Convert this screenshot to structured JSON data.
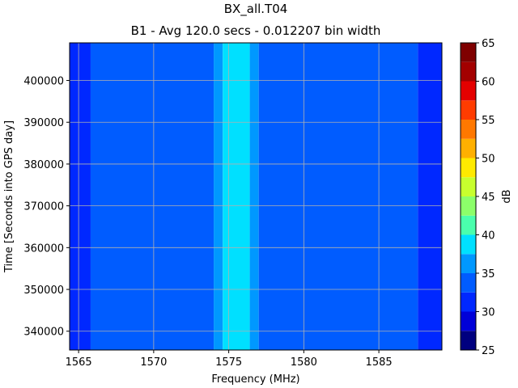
{
  "figure": {
    "title": "BX_all.T04",
    "subtitle": "B1 - Avg 120.0 secs - 0.012207 bin width"
  },
  "chart_data": {
    "type": "heatmap",
    "title": "BX_all.T04",
    "subtitle": "B1 - Avg 120.0 secs - 0.012207 bin width",
    "xlabel": "Frequency (MHz)",
    "ylabel": "Time [Seconds into GPS day]",
    "xlim": [
      1564.4,
      1589.2
    ],
    "ylim": [
      335500,
      409000
    ],
    "xticks": [
      1565,
      1570,
      1575,
      1580,
      1585
    ],
    "yticks": [
      340000,
      350000,
      360000,
      370000,
      380000,
      390000,
      400000
    ],
    "grid": true,
    "colorbar": {
      "label": "dB",
      "levels": [
        25,
        27.5,
        30,
        32.5,
        35,
        37.5,
        40,
        42.5,
        45,
        47.5,
        50,
        52.5,
        55,
        57.5,
        60,
        62.5,
        65
      ],
      "ticks": [
        25,
        30,
        35,
        40,
        45,
        50,
        55,
        60,
        65
      ],
      "colors": [
        "#00007f",
        "#0000d8",
        "#0028ff",
        "#005cff",
        "#0098ff",
        "#00e0ff",
        "#4affad",
        "#8cff6a",
        "#c8ff2e",
        "#ffea00",
        "#ffb000",
        "#ff7800",
        "#ff3c00",
        "#e40000",
        "#a30000",
        "#7f0000"
      ]
    },
    "bands": [
      {
        "from": 1564.4,
        "to": 1565.8,
        "level": 30
      },
      {
        "from": 1565.8,
        "to": 1574.0,
        "level": 32.5
      },
      {
        "from": 1574.0,
        "to": 1574.6,
        "level": 35
      },
      {
        "from": 1574.6,
        "to": 1576.4,
        "level": 37.5
      },
      {
        "from": 1576.4,
        "to": 1577.0,
        "level": 35
      },
      {
        "from": 1577.0,
        "to": 1587.6,
        "level": 32.5
      },
      {
        "from": 1587.6,
        "to": 1589.2,
        "level": 30
      }
    ]
  }
}
